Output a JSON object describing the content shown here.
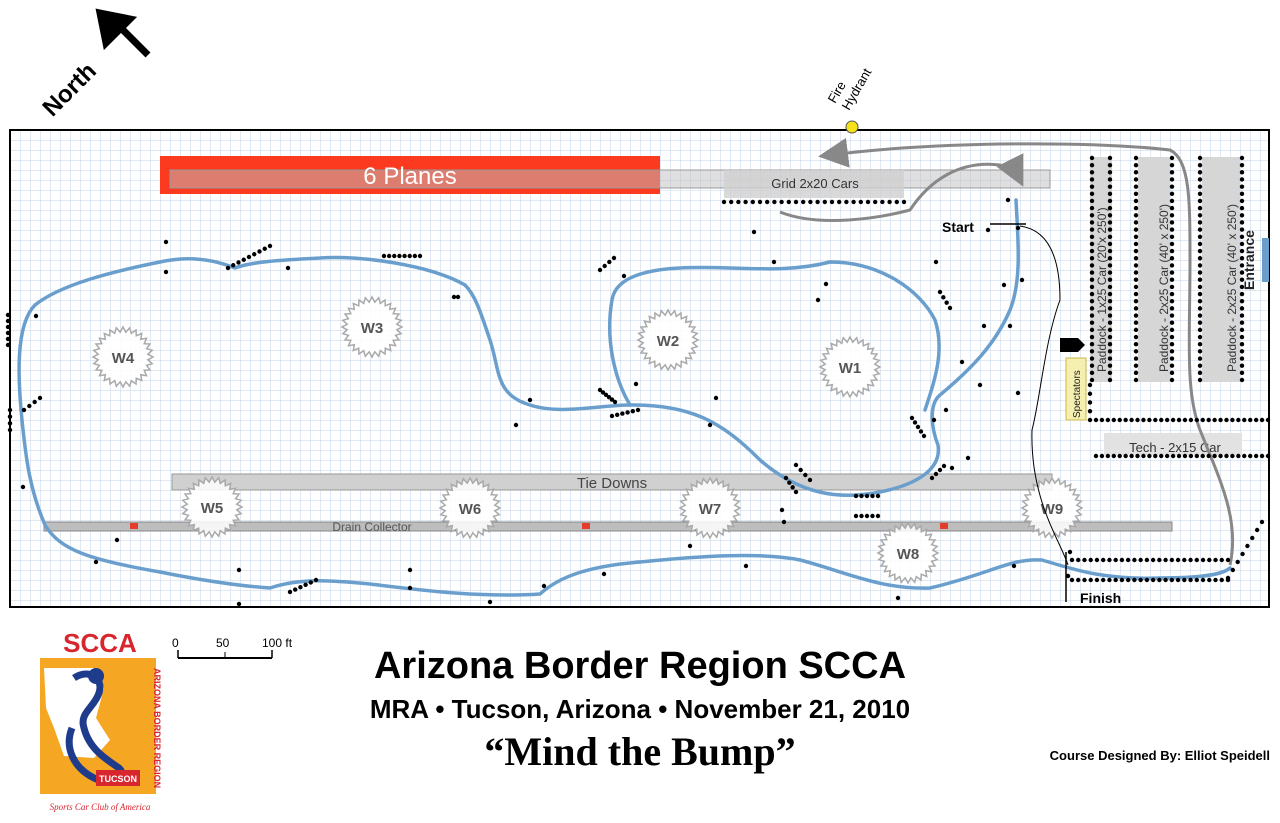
{
  "north_label": "North",
  "fire_hydrant": [
    "Fire",
    "Hydrant"
  ],
  "planes_label": "6 Planes",
  "grid_label": "Grid 2x20 Cars",
  "start_label": "Start",
  "finish_label": "Finish",
  "entrance_label": "Entrance",
  "spectators_label": "Spectators",
  "paddock_labels": [
    "Paddock - 1x25 Car (20'x 250')",
    "Paddock - 2x25 Car (40' x 250')",
    "Paddock - 2x25 Car (40' x 250')"
  ],
  "tech_label": "Tech - 2x15 Car",
  "tie_downs_label": "Tie Downs",
  "drain_label": "Drain Collector",
  "worker_stations": [
    "W1",
    "W2",
    "W3",
    "W4",
    "W5",
    "W6",
    "W7",
    "W8",
    "W9"
  ],
  "scale": {
    "ticks": [
      "0",
      "50",
      "100 ft"
    ]
  },
  "title": "Arizona Border Region SCCA",
  "subtitle": "MRA • Tucson, Arizona • November 21, 2010",
  "event_name": "“Mind the Bump”",
  "credit": "Course Designed By:  Elliot Speidell",
  "logo": {
    "acronym": "SCCA",
    "side_text": "ARIZONA BORDER REGION",
    "city": "TUCSON",
    "footer": "Sports Car Club of America"
  },
  "colors": {
    "course": "#6a9fcd",
    "planes": "#fb3a1f",
    "grid_line": "#c3d3e8",
    "hydrant": "#f6e21a",
    "logo_bg": "#f5a623",
    "logo_red": "#d8262e",
    "logo_blue": "#1f3b8c"
  }
}
